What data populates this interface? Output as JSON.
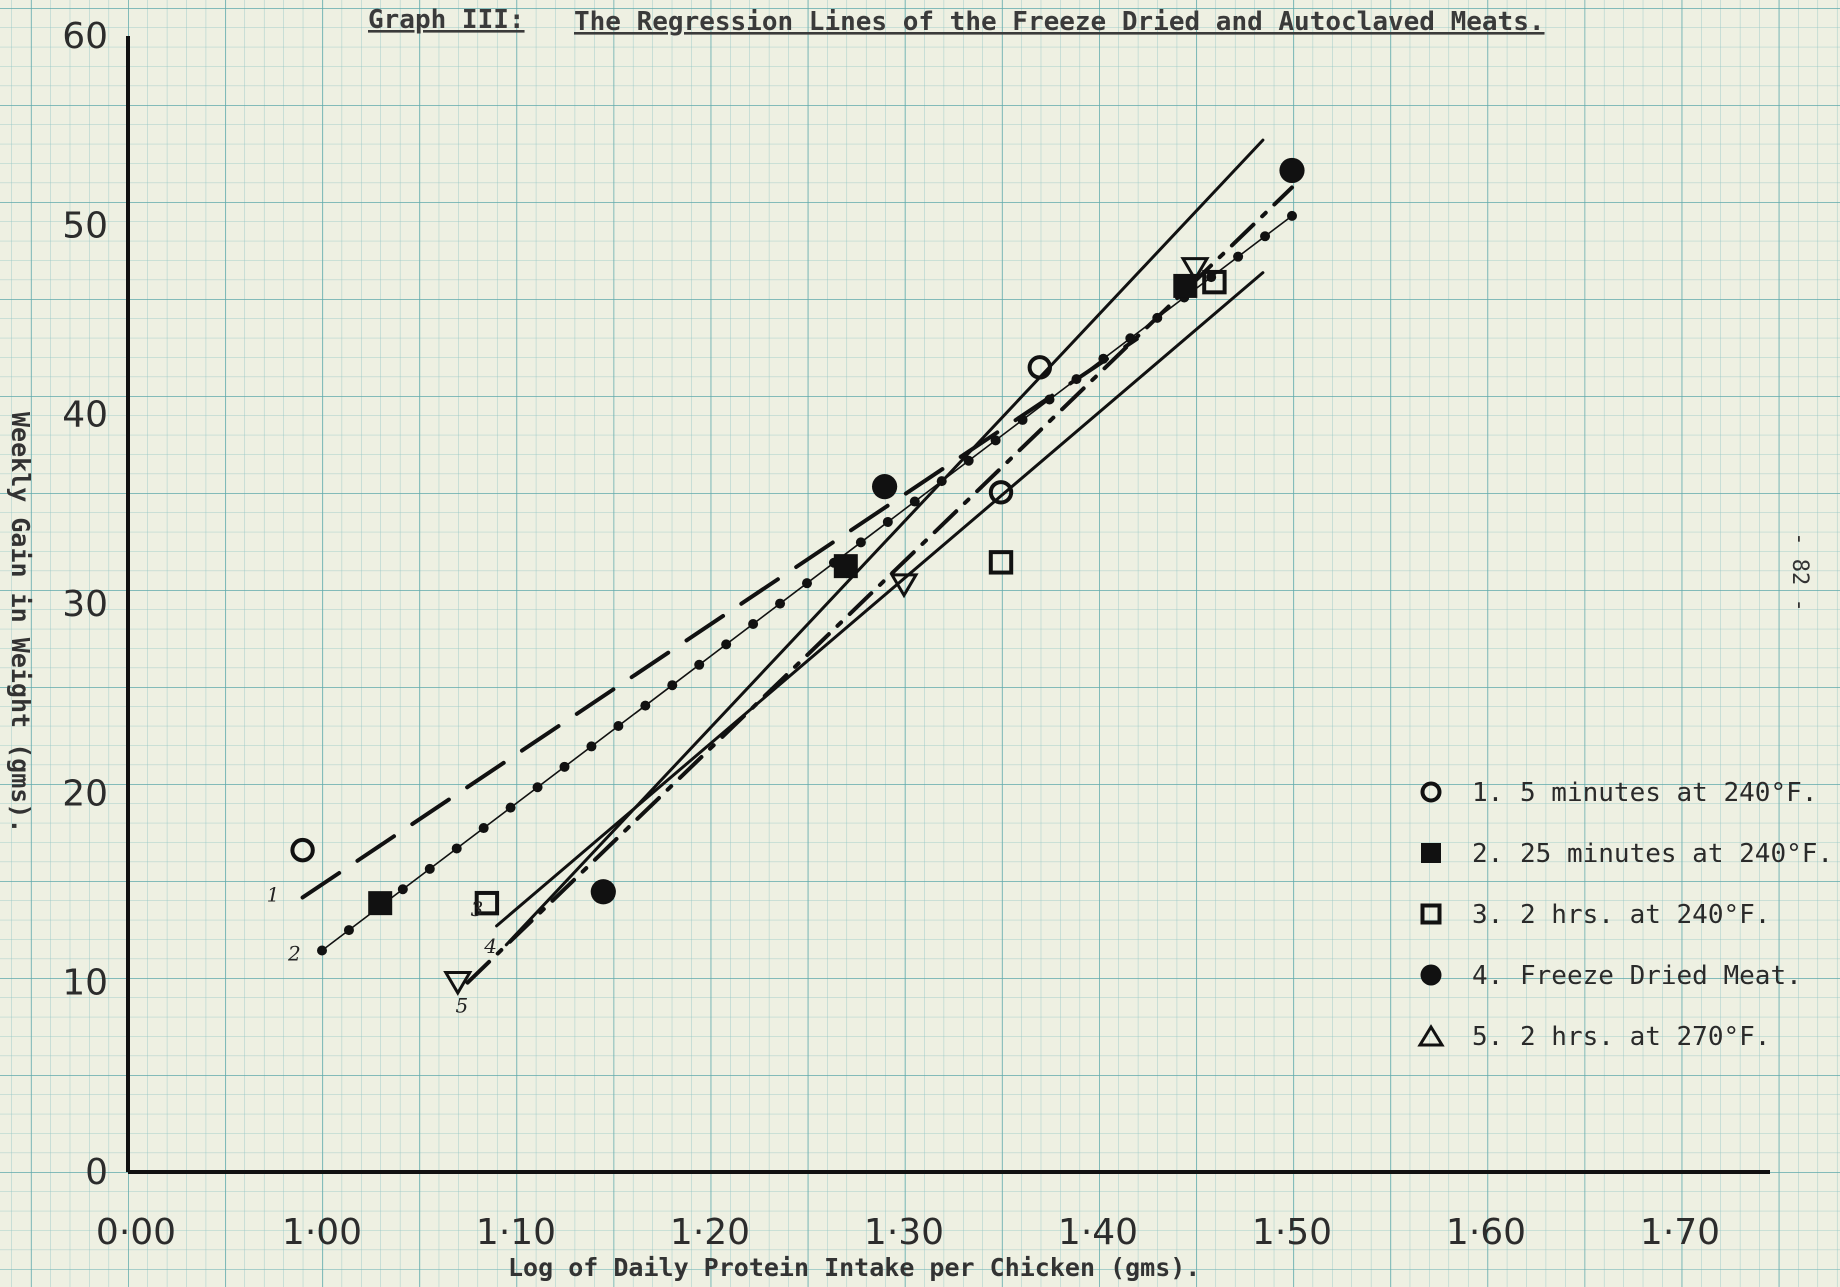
{
  "page_number": "- 82 -",
  "chart_data": {
    "type": "scatter",
    "title": {
      "prefix": "Graph III:",
      "text": "The Regression Lines of the Freeze Dried and Autoclaved Meats."
    },
    "xlabel": "Log of Daily Protein Intake per Chicken (gms).",
    "ylabel": "Weekly Gain in Weight (gms).",
    "xlim": [
      0.98,
      1.75
    ],
    "ylim": [
      0,
      60
    ],
    "x_ticks": [
      {
        "value": 0.98,
        "label": "0·00"
      },
      {
        "value": 1.0,
        "label": "1·00"
      },
      {
        "value": 1.1,
        "label": "1·10"
      },
      {
        "value": 1.2,
        "label": "1·20"
      },
      {
        "value": 1.3,
        "label": "1·30"
      },
      {
        "value": 1.4,
        "label": "1·40"
      },
      {
        "value": 1.5,
        "label": "1·50"
      },
      {
        "value": 1.6,
        "label": "1·60"
      },
      {
        "value": 1.7,
        "label": "1·70"
      }
    ],
    "y_ticks": [
      {
        "value": 0,
        "label": "0"
      },
      {
        "value": 10,
        "label": "10"
      },
      {
        "value": 20,
        "label": "20"
      },
      {
        "value": 30,
        "label": "30"
      },
      {
        "value": 40,
        "label": "40"
      },
      {
        "value": 50,
        "label": "50"
      },
      {
        "value": 60,
        "label": "60"
      }
    ],
    "grid": true,
    "legend_position": "right",
    "series": [
      {
        "number": "1.",
        "label": "5 minutes at 240°F.",
        "marker": "open-circle",
        "line_style": "dash-long",
        "tag": "1",
        "points": [
          {
            "x": 0.99,
            "y": 17.0
          },
          {
            "x": 1.35,
            "y": 35.9
          },
          {
            "x": 1.37,
            "y": 42.5
          }
        ],
        "regression": [
          {
            "x": 0.99,
            "y": 14.5
          },
          {
            "x": 1.42,
            "y": 44.0
          }
        ]
      },
      {
        "number": "2.",
        "label": "25 minutes at 240°F.",
        "marker": "filled-square",
        "line_style": "dotted",
        "tag": "2",
        "points": [
          {
            "x": 1.03,
            "y": 14.2
          },
          {
            "x": 1.27,
            "y": 32.0
          },
          {
            "x": 1.445,
            "y": 46.8
          }
        ],
        "regression": [
          {
            "x": 1.0,
            "y": 11.7
          },
          {
            "x": 1.5,
            "y": 50.5
          }
        ]
      },
      {
        "number": "3.",
        "label": "2 hrs. at 240°F.",
        "marker": "open-square",
        "line_style": "solid",
        "tag": "3",
        "points": [
          {
            "x": 1.085,
            "y": 14.2
          },
          {
            "x": 1.35,
            "y": 32.2
          },
          {
            "x": 1.46,
            "y": 47.0
          }
        ],
        "regression": [
          {
            "x": 1.09,
            "y": 13.0
          },
          {
            "x": 1.485,
            "y": 47.5
          }
        ]
      },
      {
        "number": "4.",
        "label": "Freeze Dried Meat.",
        "marker": "filled-circle",
        "line_style": "solid",
        "tag": "4",
        "points": [
          {
            "x": 1.145,
            "y": 14.8
          },
          {
            "x": 1.29,
            "y": 36.2
          },
          {
            "x": 1.5,
            "y": 52.9
          }
        ],
        "regression": [
          {
            "x": 1.095,
            "y": 12.0
          },
          {
            "x": 1.485,
            "y": 54.5
          }
        ]
      },
      {
        "number": "5.",
        "label": "2 hrs. at 270°F.",
        "marker": "open-triangle",
        "line_style": "dash-dot",
        "tag": "5",
        "points": [
          {
            "x": 1.07,
            "y": 10.0
          },
          {
            "x": 1.3,
            "y": 31.0
          },
          {
            "x": 1.45,
            "y": 47.7
          }
        ],
        "regression": [
          {
            "x": 1.075,
            "y": 10.0
          },
          {
            "x": 1.5,
            "y": 52.0
          }
        ]
      }
    ]
  }
}
